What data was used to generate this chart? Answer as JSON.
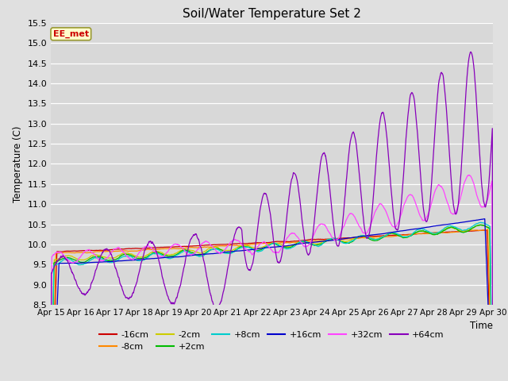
{
  "title": "Soil/Water Temperature Set 2",
  "xlabel": "Time",
  "ylabel": "Temperature (C)",
  "ylim": [
    8.5,
    15.5
  ],
  "xtick_labels": [
    "Apr 15",
    "Apr 16",
    "Apr 17",
    "Apr 18",
    "Apr 19",
    "Apr 20",
    "Apr 21",
    "Apr 22",
    "Apr 23",
    "Apr 24",
    "Apr 25",
    "Apr 26",
    "Apr 27",
    "Apr 28",
    "Apr 29",
    "Apr 30"
  ],
  "ytick_values": [
    8.5,
    9.0,
    9.5,
    10.0,
    10.5,
    11.0,
    11.5,
    12.0,
    12.5,
    13.0,
    13.5,
    14.0,
    14.5,
    15.0,
    15.5
  ],
  "legend_label": "EE_met",
  "fig_bg": "#e0e0e0",
  "plot_bg": "#d8d8d8",
  "series": [
    {
      "label": "-16cm",
      "color": "#cc0000"
    },
    {
      "label": "-8cm",
      "color": "#ff8800"
    },
    {
      "label": "-2cm",
      "color": "#cccc00"
    },
    {
      "label": "+2cm",
      "color": "#00bb00"
    },
    {
      "label": "+8cm",
      "color": "#00cccc"
    },
    {
      "label": "+16cm",
      "color": "#0000cc"
    },
    {
      "label": "+32cm",
      "color": "#ff44ff"
    },
    {
      "label": "+64cm",
      "color": "#8800bb"
    }
  ]
}
